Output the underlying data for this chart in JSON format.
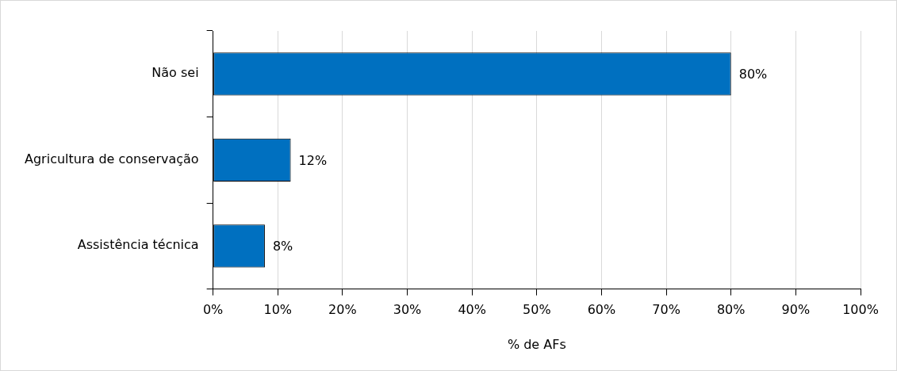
{
  "chart_data": {
    "type": "bar",
    "orientation": "horizontal",
    "categories": [
      "Não sei",
      "Agricultura de conservação",
      "Assistência técnica"
    ],
    "values": [
      80,
      12,
      8
    ],
    "color": "#0070c0",
    "xlabel": "% de AFs",
    "xlim": [
      0,
      100
    ],
    "xticks": [
      {
        "value": 0,
        "label": "0%"
      },
      {
        "value": 10,
        "label": "10%"
      },
      {
        "value": 20,
        "label": "20%"
      },
      {
        "value": 30,
        "label": "30%"
      },
      {
        "value": 40,
        "label": "40%"
      },
      {
        "value": 50,
        "label": "50%"
      },
      {
        "value": 60,
        "label": "60%"
      },
      {
        "value": 70,
        "label": "70%"
      },
      {
        "value": 80,
        "label": "80%"
      },
      {
        "value": 90,
        "label": "90%"
      },
      {
        "value": 100,
        "label": "100%"
      }
    ],
    "value_labels": [
      "80%",
      "12%",
      "8%"
    ],
    "grid": "x",
    "legend": false
  }
}
